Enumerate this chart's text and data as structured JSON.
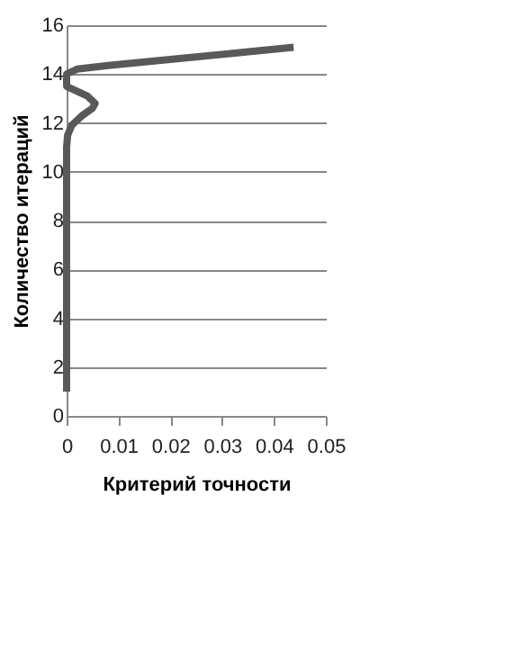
{
  "chart_data": {
    "type": "line",
    "xlabel": "Критерий точности",
    "ylabel": "Количество итераций",
    "xlim": [
      0,
      0.05
    ],
    "xticks": [
      0,
      0.01,
      0.02,
      0.03,
      0.04,
      0.05
    ],
    "ylim": [
      0,
      16
    ],
    "yticks": [
      0,
      2,
      4,
      6,
      8,
      10,
      12,
      14,
      16
    ],
    "grid": "y",
    "legend": false,
    "marker": "none",
    "line_style": "solid",
    "series": [
      {
        "color": "#595959",
        "x": [
          0,
          0,
          0,
          0.0002,
          0.001,
          0.003,
          0.005,
          0.0055,
          0.004,
          0.001,
          0,
          0,
          0.002,
          0.008,
          0.02,
          0.032,
          0.0438
        ],
        "values": [
          1,
          8.6,
          11,
          11.5,
          11.9,
          12.3,
          12.6,
          12.8,
          13.1,
          13.4,
          13.5,
          14,
          14.2,
          14.35,
          14.6,
          14.85,
          15.1
        ]
      }
    ]
  }
}
